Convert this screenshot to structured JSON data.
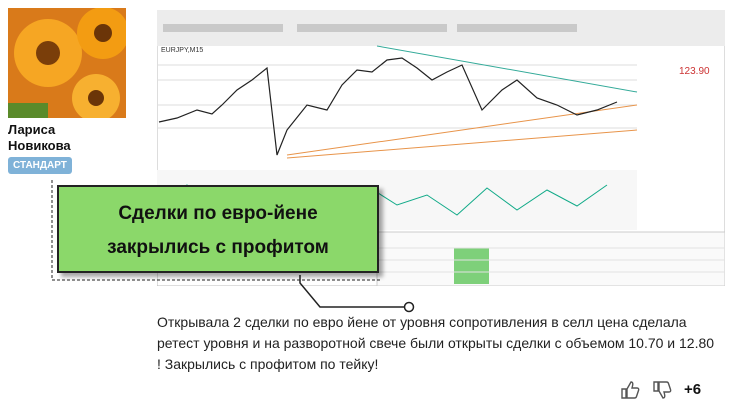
{
  "author": {
    "name_lines": [
      "Лариса",
      "Новикова"
    ],
    "badge": "СТАНДАРТ"
  },
  "screenshot": {
    "symbol": "EURJPY,M15",
    "price": "123.90",
    "callout_lines": [
      "Сделки по евро-йене",
      "закрылись с профитом"
    ]
  },
  "post": {
    "lines": [
      "Открывала 2 сделки по евро йене от уровня сопротивления в селл цена сделала",
      "ретест уровня и на разворотной свече были открыты сделки с объемом 10.70 и 12.80",
      "! Закрылись с профитом по тейку!"
    ]
  },
  "votes": {
    "score": "+6"
  }
}
